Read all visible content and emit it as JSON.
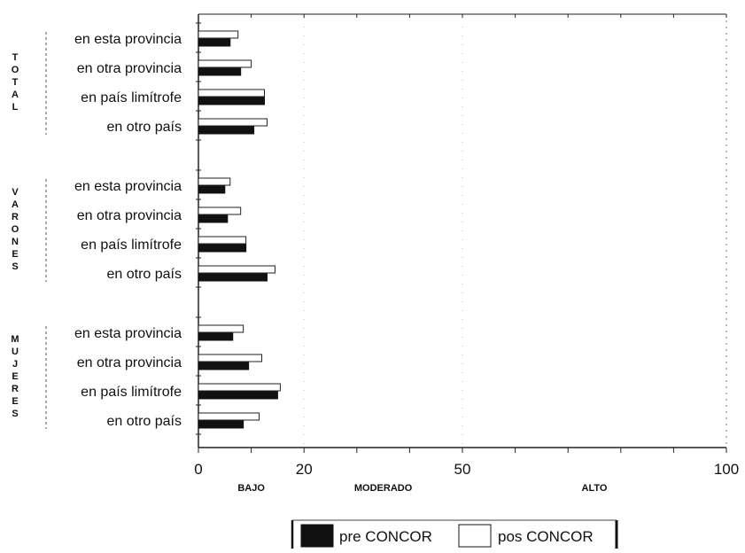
{
  "chart_data": {
    "type": "bar",
    "orientation": "horizontal",
    "xlim": [
      0,
      100
    ],
    "x_ticks": [
      0,
      20,
      50,
      100
    ],
    "zone_labels": [
      {
        "text": "BAJO",
        "x": 10
      },
      {
        "text": "MODERADO",
        "x": 35
      },
      {
        "text": "ALTO",
        "x": 75
      }
    ],
    "groups": [
      {
        "label": "TOTAL",
        "categories": [
          "en esta provincia",
          "en otra provincia",
          "en país limítrofe",
          "en otro país"
        ]
      },
      {
        "label": "VARONES",
        "categories": [
          "en esta provincia",
          "en otra provincia",
          "en país limítrofe",
          "en otro país"
        ]
      },
      {
        "label": "MUJERES",
        "categories": [
          "en esta provincia",
          "en otra provincia",
          "en país limítrofe",
          "en otro país"
        ]
      }
    ],
    "series": [
      {
        "name": "pre CONCOR",
        "color": "#111111",
        "values": [
          [
            6,
            8,
            12.5,
            10.5
          ],
          [
            5,
            5.5,
            9,
            13
          ],
          [
            6.5,
            9.5,
            15,
            8.5
          ]
        ]
      },
      {
        "name": "pos CONCOR",
        "color": "#ffffff",
        "values": [
          [
            7.5,
            10,
            12.5,
            13
          ],
          [
            6,
            8,
            9,
            14.5
          ],
          [
            8.5,
            12,
            15.5,
            11.5
          ]
        ]
      }
    ],
    "legend": {
      "placement": "bottom-center"
    },
    "grid": false
  }
}
